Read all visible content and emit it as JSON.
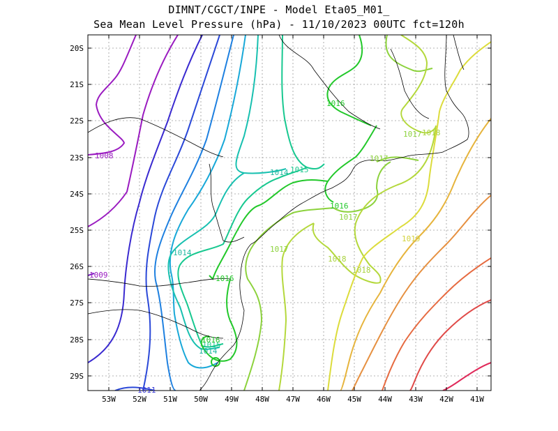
{
  "header": {
    "line1": "DIMNT/CGCT/INPE -  Model Eta05_M01_",
    "line2": "Sea Mean Level Pressure (hPa) - 11/10/2023 00UTC fct=120h"
  },
  "axes": {
    "lat_ticks": [
      "20S",
      "21S",
      "22S",
      "23S",
      "24S",
      "25S",
      "26S",
      "27S",
      "28S",
      "29S"
    ],
    "lon_ticks": [
      "53W",
      "52W",
      "51W",
      "50W",
      "49W",
      "48W",
      "47W",
      "46W",
      "45W",
      "44W",
      "43W",
      "42W",
      "41W"
    ]
  },
  "contour_labels": [
    {
      "text": "1008",
      "color": "#9a1bc0"
    },
    {
      "text": "1009",
      "color": "#9a1bc0"
    },
    {
      "text": "1011",
      "color": "#3a3ad8"
    },
    {
      "text": "1014",
      "color": "#1fb8a0"
    },
    {
      "text": "1014",
      "color": "#1fb8a0"
    },
    {
      "text": "1014",
      "color": "#1fb8a0"
    },
    {
      "text": "1015",
      "color": "#1fc890"
    },
    {
      "text": "1015",
      "color": "#1fc890"
    },
    {
      "text": "1016",
      "color": "#22c82a"
    },
    {
      "text": "1016",
      "color": "#22c82a"
    },
    {
      "text": "1016",
      "color": "#22c82a"
    },
    {
      "text": "1016",
      "color": "#22c82a"
    },
    {
      "text": "1017",
      "color": "#8cd23c"
    },
    {
      "text": "1017",
      "color": "#8cd23c"
    },
    {
      "text": "1017",
      "color": "#8cd23c"
    },
    {
      "text": "1017",
      "color": "#8cd23c"
    },
    {
      "text": "1018",
      "color": "#a8d23c"
    },
    {
      "text": "1018",
      "color": "#a8d23c"
    },
    {
      "text": "1018",
      "color": "#a8d23c"
    },
    {
      "text": "1019",
      "color": "#d2d23c"
    }
  ],
  "colors": {
    "c1007": "#9a1bc0",
    "c1009": "#5a1cc8",
    "c1010": "#2a2ad0",
    "c1011": "#2a5ae0",
    "c1012": "#1e90e0",
    "c1013": "#18b0d8",
    "c1014": "#18c0b0",
    "c1015": "#18c890",
    "c1016": "#22c82a",
    "c1017": "#8cd23c",
    "c1018": "#b4d83c",
    "c1019": "#dcdc3c",
    "c1020": "#e6b43c",
    "c1021": "#e69040",
    "c1022": "#e66a40",
    "c1023": "#e04a48",
    "c1024": "#e02a5a"
  }
}
